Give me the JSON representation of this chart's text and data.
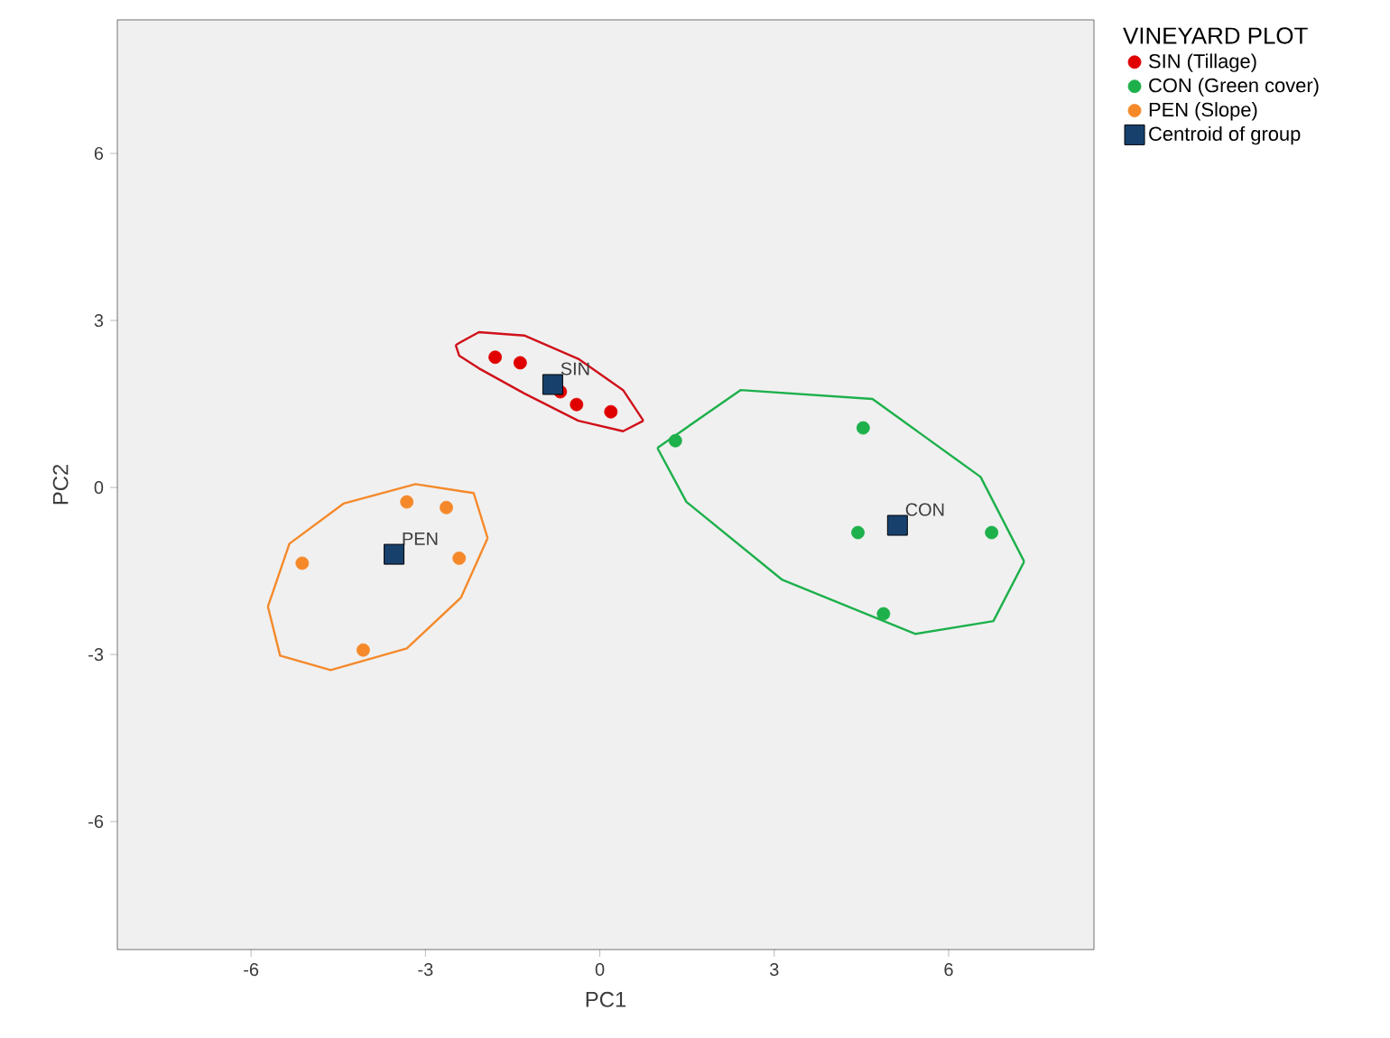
{
  "chart_data": {
    "type": "scatter",
    "xlabel": "PC1",
    "ylabel": "PC2",
    "legend_title": "VINEYARD PLOT",
    "legend": "right",
    "grid": false,
    "marker": "circle",
    "xlim": [
      -8.3,
      8.5
    ],
    "ylim": [
      -8.3,
      8.4
    ],
    "xticks": [
      -6,
      -3,
      0,
      3,
      6
    ],
    "yticks": [
      -6,
      -3,
      0,
      3,
      6
    ],
    "series": [
      {
        "name": "SIN (Tillage)",
        "color": "#e00000",
        "x": [
          -1.8,
          -1.37,
          -0.68,
          -0.4,
          0.19
        ],
        "values": [
          2.34,
          2.24,
          1.72,
          1.49,
          1.36
        ]
      },
      {
        "name": "CON (Green cover)",
        "color": "#1db04b",
        "x": [
          1.3,
          4.53,
          4.44,
          6.74,
          4.88
        ],
        "values": [
          0.84,
          1.07,
          -0.81,
          -0.81,
          -2.27
        ]
      },
      {
        "name": "PEN (Slope)",
        "color": "#f5892a",
        "x": [
          -3.32,
          -2.64,
          -5.12,
          -2.42,
          -4.07
        ],
        "values": [
          -0.26,
          -0.36,
          -1.36,
          -1.27,
          -2.92
        ]
      },
      {
        "name": "Centroid of group",
        "color": "#17406d",
        "marker": "square",
        "x": [
          -0.81,
          5.12,
          -3.54
        ],
        "values": [
          1.85,
          -0.68,
          -1.2
        ]
      },
      {
        "type": "line",
        "color": "#d0101a",
        "marker": "none",
        "x": [
          -2.48,
          -2.08,
          -1.3,
          -0.37,
          0.4,
          0.75
        ],
        "values": [
          2.56,
          2.79,
          2.73,
          2.31,
          1.75,
          1.2
        ]
      },
      {
        "type": "line",
        "color": "#d0101a",
        "marker": "none",
        "x": [
          -2.48,
          -2.42,
          -2.08,
          -1.3,
          -0.37,
          0.4,
          0.75
        ],
        "values": [
          2.56,
          2.37,
          2.14,
          1.69,
          1.2,
          1.01,
          1.2
        ]
      },
      {
        "type": "line",
        "color": "#1db04b",
        "marker": "none",
        "x": [
          0.99,
          2.42,
          4.69,
          6.55,
          7.3
        ],
        "values": [
          0.71,
          1.75,
          1.59,
          0.19,
          -1.33
        ]
      },
      {
        "type": "line",
        "color": "#1db04b",
        "marker": "none",
        "x": [
          0.99,
          1.49,
          3.14,
          5.43,
          6.77,
          7.3
        ],
        "values": [
          0.71,
          -0.26,
          -1.66,
          -2.63,
          -2.4,
          -1.33
        ]
      },
      {
        "type": "line",
        "color": "#f5892a",
        "marker": "none",
        "x": [
          -5.71,
          -5.34,
          -4.41,
          -3.17,
          -2.17,
          -1.93
        ],
        "values": [
          -2.14,
          -1.01,
          -0.29,
          0.06,
          -0.1,
          -0.91
        ]
      },
      {
        "type": "line",
        "color": "#f5892a",
        "marker": "none",
        "x": [
          -5.71,
          -5.5,
          -4.63,
          -3.32,
          -2.39,
          -1.93
        ],
        "values": [
          -2.14,
          -3.02,
          -3.28,
          -2.89,
          -1.98,
          -0.91
        ]
      }
    ],
    "annotations": [
      {
        "text": "SIN",
        "x": -0.81,
        "y": 1.85
      },
      {
        "text": "CON",
        "x": 5.12,
        "y": -0.68
      },
      {
        "text": "PEN",
        "x": -3.54,
        "y": -1.2
      }
    ]
  }
}
